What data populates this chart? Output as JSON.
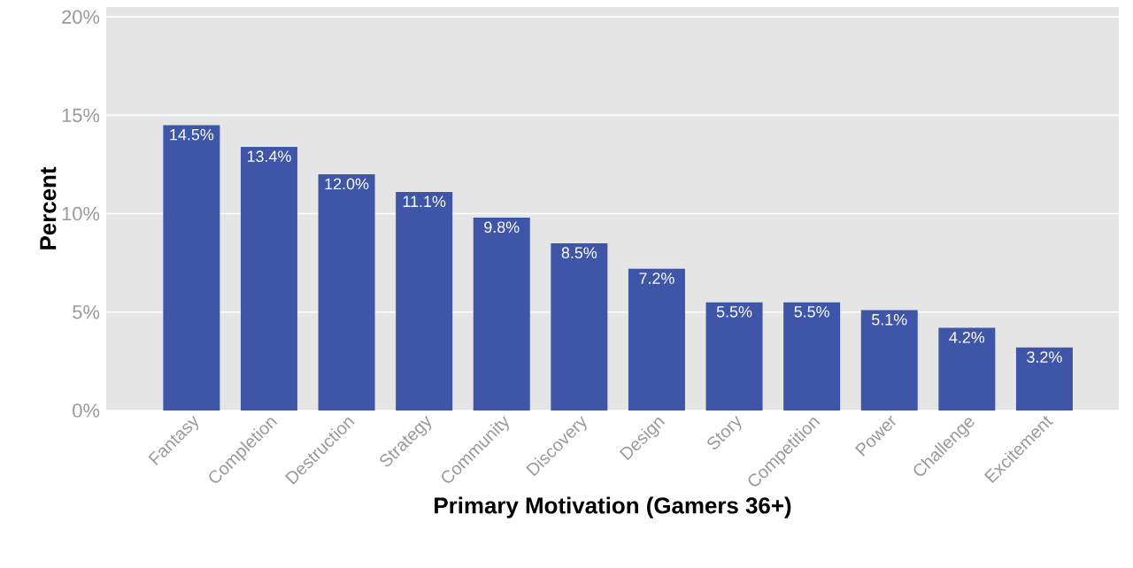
{
  "chart_data": {
    "type": "bar",
    "xlabel": "Primary Motivation (Gamers 36+)",
    "ylabel": "Percent",
    "categories": [
      "Fantasy",
      "Completion",
      "Destruction",
      "Strategy",
      "Community",
      "Discovery",
      "Design",
      "Story",
      "Competition",
      "Power",
      "Challenge",
      "Excitement"
    ],
    "values": [
      14.5,
      13.4,
      12.0,
      11.1,
      9.8,
      8.5,
      7.2,
      5.5,
      5.5,
      5.1,
      4.2,
      3.2
    ],
    "value_labels": [
      "14.5%",
      "13.4%",
      "12.0%",
      "11.1%",
      "9.8%",
      "8.5%",
      "7.2%",
      "5.5%",
      "5.5%",
      "5.1%",
      "4.2%",
      "3.2%"
    ],
    "color": "#3f56a8",
    "ylim": [
      0,
      20.5
    ],
    "yticks": [
      {
        "value": 0,
        "label": "0%"
      },
      {
        "value": 5,
        "label": "5%"
      },
      {
        "value": 10,
        "label": "10%"
      },
      {
        "value": 15,
        "label": "15%"
      },
      {
        "value": 20,
        "label": "20%"
      }
    ],
    "grid": "y"
  }
}
